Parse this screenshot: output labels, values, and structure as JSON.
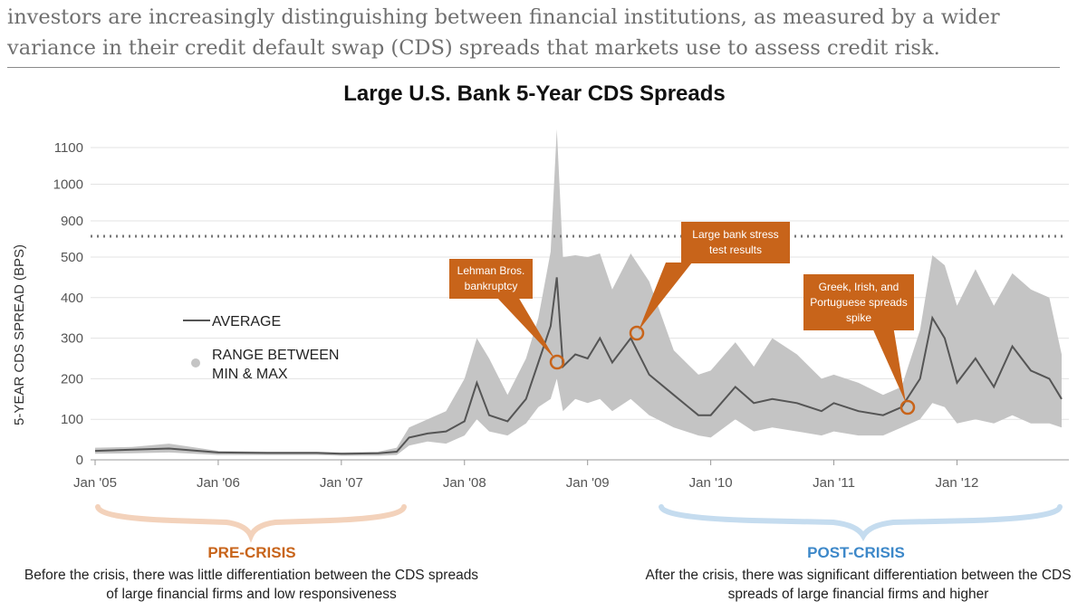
{
  "intro_text": "investors are increasingly distinguishing between financial institutions, as measured by a wider variance in their credit default swap (CDS) spreads that markets use to assess credit risk.",
  "chart_data": {
    "type": "area+line",
    "title": "Large U.S. Bank 5-Year CDS Spreads",
    "ylabel": "5-YEAR CDS SPREAD (BPS)",
    "xlabel": "",
    "y_axis_break": "broken axis above 500 (dotted line); upper segment 900–1100",
    "y_ticks_lower": [
      0,
      100,
      200,
      300,
      400,
      500
    ],
    "y_ticks_upper": [
      900,
      1000,
      1100
    ],
    "x_ticks": [
      "Jan '05",
      "Jan '06",
      "Jan '07",
      "Jan '08",
      "Jan '09",
      "Jan '10",
      "Jan '11",
      "Jan '12"
    ],
    "x_range": [
      2005.0,
      2012.85
    ],
    "legend": {
      "placement": "left",
      "items": [
        "AVERAGE",
        "RANGE BETWEEN MIN & MAX"
      ]
    },
    "colors": {
      "average": "#555555",
      "range": "#c4c4c4",
      "accent": "#c8641a",
      "post": "#3d88c9",
      "pre_brace": "#f3d2bb",
      "post_brace": "#c5dcef"
    },
    "series": [
      {
        "name": "AVERAGE",
        "x": [
          2005.0,
          2005.3,
          2005.6,
          2006.0,
          2006.4,
          2006.8,
          2007.0,
          2007.3,
          2007.45,
          2007.55,
          2007.7,
          2007.85,
          2008.0,
          2008.1,
          2008.2,
          2008.35,
          2008.5,
          2008.6,
          2008.7,
          2008.75,
          2008.8,
          2008.9,
          2009.0,
          2009.1,
          2009.2,
          2009.35,
          2009.5,
          2009.7,
          2009.9,
          2010.0,
          2010.2,
          2010.35,
          2010.5,
          2010.7,
          2010.9,
          2011.0,
          2011.2,
          2011.4,
          2011.55,
          2011.7,
          2011.8,
          2011.9,
          2012.0,
          2012.15,
          2012.3,
          2012.45,
          2012.6,
          2012.75,
          2012.85
        ],
        "values": [
          22,
          25,
          28,
          18,
          17,
          17,
          15,
          16,
          20,
          55,
          65,
          70,
          95,
          190,
          110,
          95,
          150,
          240,
          330,
          450,
          230,
          260,
          250,
          300,
          240,
          300,
          210,
          160,
          110,
          110,
          180,
          140,
          150,
          140,
          120,
          140,
          120,
          110,
          130,
          200,
          350,
          300,
          190,
          250,
          180,
          280,
          220,
          200,
          150
        ]
      },
      {
        "name": "RANGE MAX",
        "x": [
          2005.0,
          2005.3,
          2005.6,
          2006.0,
          2006.4,
          2006.8,
          2007.0,
          2007.3,
          2007.45,
          2007.55,
          2007.7,
          2007.85,
          2008.0,
          2008.1,
          2008.2,
          2008.35,
          2008.5,
          2008.6,
          2008.7,
          2008.75,
          2008.8,
          2008.9,
          2009.0,
          2009.1,
          2009.2,
          2009.35,
          2009.5,
          2009.7,
          2009.9,
          2010.0,
          2010.2,
          2010.35,
          2010.5,
          2010.7,
          2010.9,
          2011.0,
          2011.2,
          2011.4,
          2011.55,
          2011.7,
          2011.8,
          2011.9,
          2012.0,
          2012.15,
          2012.3,
          2012.45,
          2012.6,
          2012.75,
          2012.85
        ],
        "values": [
          30,
          32,
          40,
          22,
          20,
          20,
          18,
          20,
          30,
          80,
          100,
          120,
          200,
          300,
          250,
          160,
          250,
          350,
          560,
          1150,
          500,
          520,
          500,
          540,
          420,
          540,
          440,
          270,
          210,
          220,
          290,
          230,
          300,
          260,
          200,
          210,
          190,
          160,
          180,
          320,
          520,
          480,
          380,
          470,
          380,
          460,
          420,
          400,
          260
        ]
      },
      {
        "name": "RANGE MIN",
        "x": [
          2005.0,
          2005.3,
          2005.6,
          2006.0,
          2006.4,
          2006.8,
          2007.0,
          2007.3,
          2007.45,
          2007.55,
          2007.7,
          2007.85,
          2008.0,
          2008.1,
          2008.2,
          2008.35,
          2008.5,
          2008.6,
          2008.7,
          2008.75,
          2008.8,
          2008.9,
          2009.0,
          2009.1,
          2009.2,
          2009.35,
          2009.5,
          2009.7,
          2009.9,
          2010.0,
          2010.2,
          2010.35,
          2010.5,
          2010.7,
          2010.9,
          2011.0,
          2011.2,
          2011.4,
          2011.55,
          2011.7,
          2011.8,
          2011.9,
          2012.0,
          2012.15,
          2012.3,
          2012.45,
          2012.6,
          2012.75,
          2012.85
        ],
        "values": [
          15,
          16,
          18,
          12,
          12,
          12,
          10,
          10,
          12,
          35,
          45,
          40,
          60,
          100,
          70,
          60,
          90,
          130,
          150,
          200,
          120,
          150,
          140,
          150,
          120,
          150,
          110,
          80,
          60,
          55,
          100,
          70,
          80,
          70,
          60,
          70,
          60,
          60,
          80,
          100,
          140,
          130,
          90,
          100,
          90,
          110,
          90,
          90,
          80
        ]
      }
    ],
    "annotations": [
      {
        "label": "Lehman Bros. bankruptcy",
        "x": 2008.7,
        "y": 240
      },
      {
        "label": "Large bank stress test results",
        "x": 2009.35,
        "y": 312
      },
      {
        "label": "Greek, Irish, and Portuguese spreads spike",
        "x": 2011.5,
        "y": 130
      }
    ],
    "sections": {
      "pre": {
        "title": "PRE-CRISIS",
        "text": "Before the crisis, there was little differentiation between the CDS spreads of large financial firms and low responsiveness"
      },
      "post": {
        "title": "POST-CRISIS",
        "text": "After the crisis, there was significant differentiation between the CDS spreads of large financial firms and higher"
      }
    }
  }
}
